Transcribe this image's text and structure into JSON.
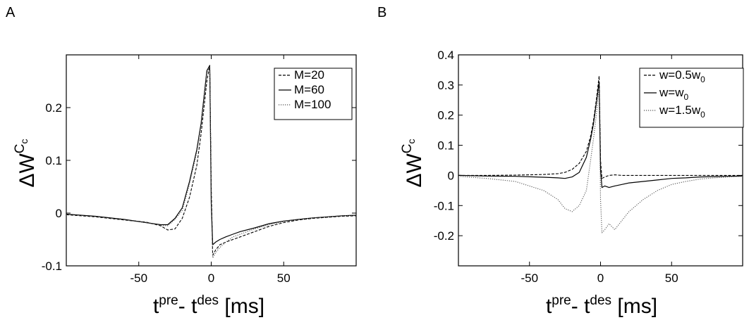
{
  "panels": [
    {
      "label": "A",
      "chart_data": {
        "type": "line",
        "xlabel_main": "t",
        "xlabel_sup1": "pre",
        "xlabel_mid": "- t",
        "xlabel_sup2": "des",
        "xlabel_unit": " [ms]",
        "ylabel_main": "ΔW",
        "ylabel_sup": "C",
        "ylabel_subsup": "c",
        "xlim": [
          -100,
          100
        ],
        "ylim": [
          -0.1,
          0.3
        ],
        "xticks": [
          -50,
          0,
          50
        ],
        "xtick_labels": [
          "-50",
          "0",
          "50"
        ],
        "yticks": [
          -0.1,
          0,
          0.1,
          0.2
        ],
        "ytick_labels": [
          "-0.1",
          "0",
          "0.1",
          "0.2"
        ],
        "grid": false,
        "legend_position": "top-right",
        "series": [
          {
            "name": "M=20",
            "dash": "dashed",
            "x": [
              -100,
              -80,
              -60,
              -45,
              -35,
              -30,
              -25,
              -20,
              -15,
              -10,
              -7,
              -5,
              -3,
              -1,
              0,
              1,
              3,
              6,
              10,
              15,
              20,
              30,
              40,
              50,
              60,
              70,
              80,
              90,
              100
            ],
            "y": [
              -0.003,
              -0.007,
              -0.013,
              -0.017,
              -0.024,
              -0.032,
              -0.03,
              -0.01,
              0.03,
              0.09,
              0.15,
              0.2,
              0.25,
              0.28,
              0.05,
              -0.08,
              -0.07,
              -0.06,
              -0.055,
              -0.05,
              -0.045,
              -0.035,
              -0.025,
              -0.018,
              -0.013,
              -0.01,
              -0.008,
              -0.006,
              -0.005
            ]
          },
          {
            "name": "M=60",
            "dash": "solid",
            "x": [
              -100,
              -80,
              -60,
              -45,
              -35,
              -30,
              -25,
              -20,
              -15,
              -10,
              -7,
              -5,
              -3,
              -1,
              0,
              1,
              3,
              6,
              10,
              15,
              20,
              30,
              40,
              50,
              60,
              70,
              80,
              90,
              100
            ],
            "y": [
              -0.002,
              -0.006,
              -0.012,
              -0.018,
              -0.022,
              -0.022,
              -0.01,
              0.01,
              0.06,
              0.12,
              0.17,
              0.22,
              0.27,
              0.28,
              0.02,
              -0.06,
              -0.055,
              -0.05,
              -0.045,
              -0.04,
              -0.035,
              -0.028,
              -0.02,
              -0.015,
              -0.012,
              -0.009,
              -0.007,
              -0.005,
              -0.004
            ]
          },
          {
            "name": "M=100",
            "dash": "dotted",
            "x": [
              -100,
              -80,
              -60,
              -45,
              -35,
              -30,
              -25,
              -20,
              -15,
              -10,
              -7,
              -5,
              -3,
              -1,
              0,
              1,
              3,
              6,
              10,
              15,
              20,
              30,
              40,
              50,
              60,
              70,
              80,
              90,
              100
            ],
            "y": [
              -0.003,
              -0.007,
              -0.013,
              -0.018,
              -0.023,
              -0.024,
              -0.012,
              0.005,
              0.055,
              0.115,
              0.165,
              0.215,
              0.265,
              0.278,
              0.01,
              -0.085,
              -0.075,
              -0.065,
              -0.055,
              -0.045,
              -0.04,
              -0.03,
              -0.022,
              -0.016,
              -0.012,
              -0.009,
              -0.007,
              -0.005,
              -0.004
            ]
          }
        ]
      }
    },
    {
      "label": "B",
      "chart_data": {
        "type": "line",
        "xlabel_main": "t",
        "xlabel_sup1": "pre",
        "xlabel_mid": "- t",
        "xlabel_sup2": "des",
        "xlabel_unit": " [ms]",
        "ylabel_main": "ΔW",
        "ylabel_sup": "C",
        "ylabel_subsup": "c",
        "xlim": [
          -100,
          100
        ],
        "ylim": [
          -0.3,
          0.4
        ],
        "xticks": [
          -50,
          0,
          50
        ],
        "xtick_labels": [
          "-50",
          "0",
          "50"
        ],
        "yticks": [
          -0.2,
          -0.1,
          0,
          0.1,
          0.2,
          0.3,
          0.4
        ],
        "ytick_labels": [
          "-0.2",
          "-0.1",
          "0",
          "0.1",
          "0.2",
          "0.3",
          "0.4"
        ],
        "grid": false,
        "legend_position": "top-right",
        "series": [
          {
            "name": "w=0.5w0",
            "name_main": "w=0.5w",
            "name_sub": "0",
            "dash": "dashed",
            "x": [
              -100,
              -80,
              -60,
              -40,
              -30,
              -25,
              -20,
              -15,
              -10,
              -7,
              -5,
              -3,
              -1,
              0,
              1,
              3,
              6,
              10,
              15,
              20,
              30,
              40,
              50,
              60,
              70,
              80,
              90,
              100
            ],
            "y": [
              0.0,
              0.0,
              0.001,
              0.003,
              0.006,
              0.01,
              0.02,
              0.04,
              0.08,
              0.13,
              0.18,
              0.25,
              0.33,
              0.05,
              -0.01,
              -0.005,
              0.0,
              0.002,
              0.0,
              0.0,
              0.0,
              0.0,
              0.0,
              0.0,
              0.0,
              0.0,
              0.0,
              0.0
            ]
          },
          {
            "name": "w=w0",
            "name_main": "w=w",
            "name_sub": "0",
            "dash": "solid",
            "x": [
              -100,
              -80,
              -60,
              -40,
              -30,
              -25,
              -20,
              -15,
              -10,
              -7,
              -5,
              -3,
              -1,
              0,
              1,
              3,
              6,
              10,
              15,
              20,
              30,
              40,
              50,
              60,
              70,
              80,
              90,
              100
            ],
            "y": [
              0.0,
              -0.002,
              -0.003,
              -0.006,
              -0.008,
              -0.01,
              -0.005,
              0.01,
              0.06,
              0.12,
              0.17,
              0.24,
              0.31,
              0.02,
              -0.04,
              -0.035,
              -0.04,
              -0.035,
              -0.03,
              -0.025,
              -0.02,
              -0.015,
              -0.01,
              -0.008,
              -0.005,
              -0.004,
              -0.003,
              -0.002
            ]
          },
          {
            "name": "w=1.5w0",
            "name_main": "w=1.5w",
            "name_sub": "0",
            "dash": "dotted",
            "x": [
              -100,
              -80,
              -60,
              -40,
              -30,
              -25,
              -20,
              -15,
              -10,
              -7,
              -5,
              -3,
              -1,
              0,
              1,
              3,
              6,
              10,
              15,
              20,
              30,
              40,
              50,
              60,
              70,
              80,
              90,
              100
            ],
            "y": [
              -0.003,
              -0.01,
              -0.02,
              -0.05,
              -0.08,
              -0.11,
              -0.12,
              -0.1,
              -0.05,
              0.05,
              0.12,
              0.2,
              0.29,
              -0.08,
              -0.19,
              -0.18,
              -0.16,
              -0.18,
              -0.15,
              -0.12,
              -0.08,
              -0.05,
              -0.03,
              -0.02,
              -0.012,
              -0.008,
              -0.005,
              -0.003
            ]
          }
        ]
      }
    }
  ]
}
